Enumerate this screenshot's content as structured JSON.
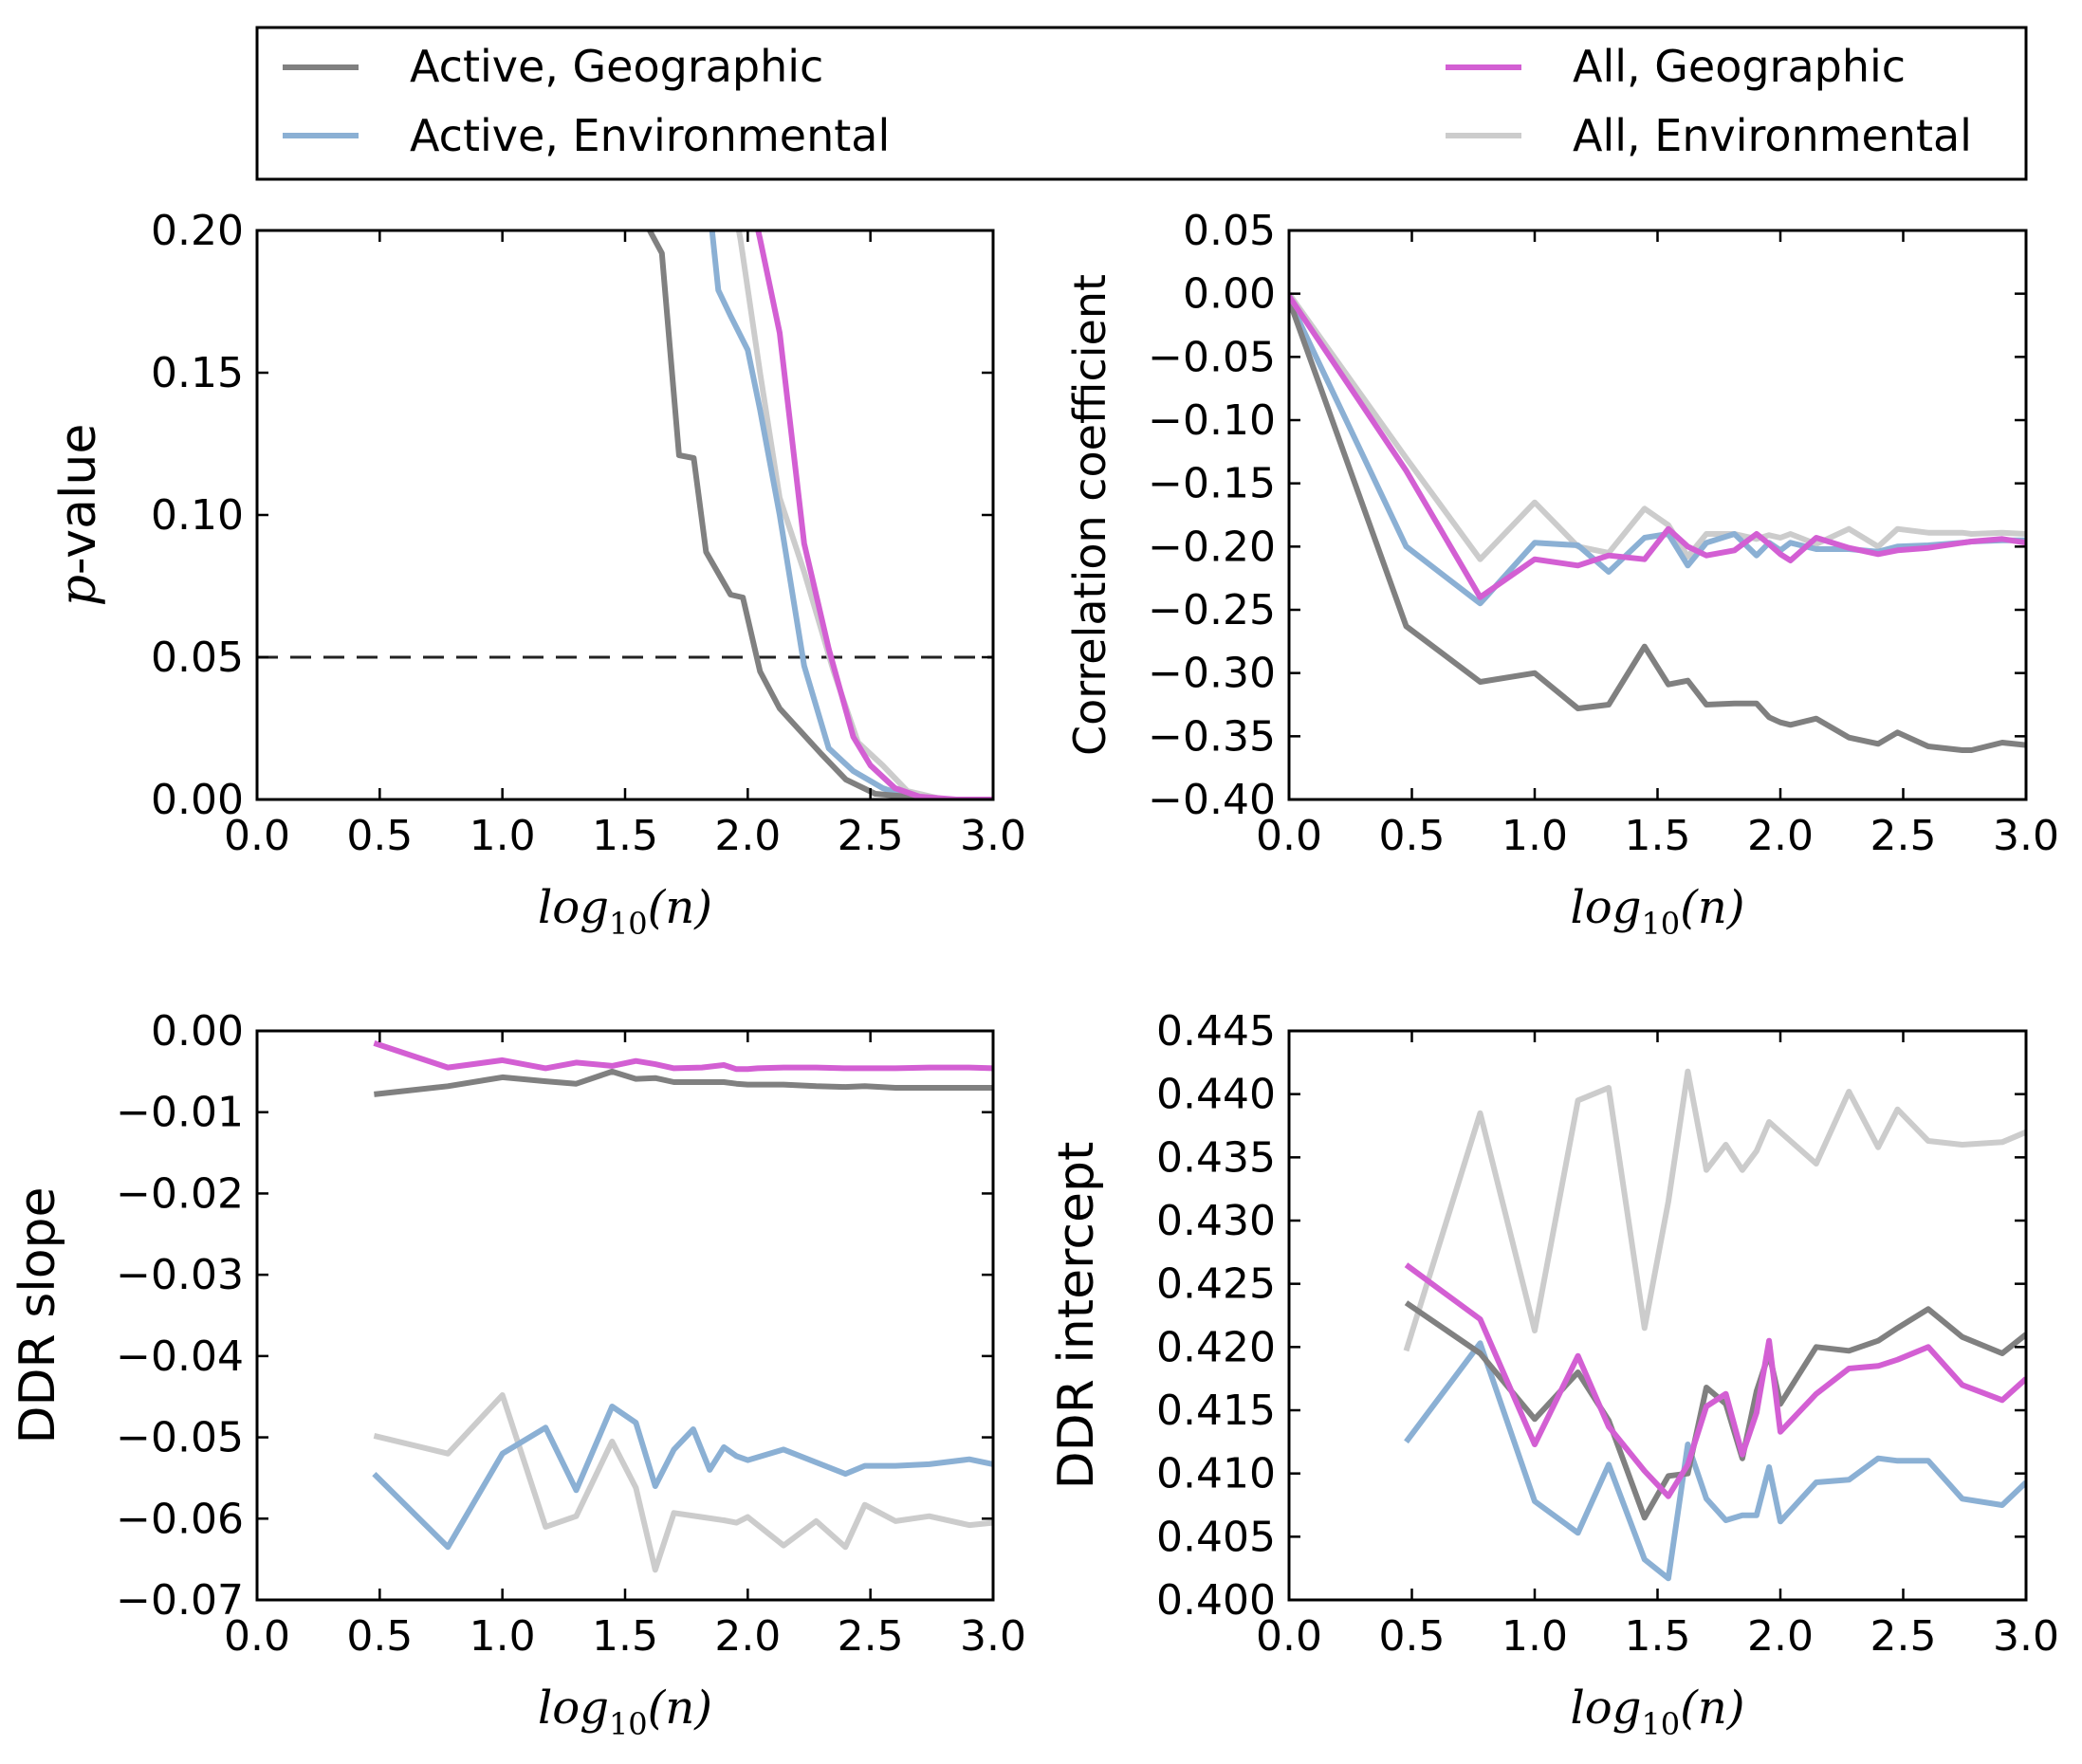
{
  "legend": [
    {
      "name": "Active, Geographic",
      "color": "#808080"
    },
    {
      "name": "Active, Environmental",
      "color": "#8bb0d4"
    },
    {
      "name": "All, Geographic",
      "color": "#d35fd3"
    },
    {
      "name": "All, Environmental",
      "color": "#cccccc"
    }
  ],
  "chart_data": [
    {
      "type": "line",
      "xlabel_base": "log",
      "xlabel_sub": "10",
      "xlabel_arg": "(n)",
      "ylabel_italic": "p",
      "ylabel_rest": "-value",
      "xlim": [
        0,
        3
      ],
      "ylim": [
        0,
        0.2
      ],
      "xticks": [
        "0.0",
        "0.5",
        "1.0",
        "1.5",
        "2.0",
        "2.5",
        "3.0"
      ],
      "yticks": [
        "0.00",
        "0.05",
        "0.10",
        "0.15",
        "0.20"
      ],
      "reference_line": {
        "y": 0.05,
        "style": "dashed"
      },
      "series": [
        {
          "name": "Active, Geographic",
          "x": [
            1.45,
            1.6,
            1.65,
            1.72,
            1.78,
            1.83,
            1.93,
            1.98,
            2.05,
            2.13,
            2.3,
            2.4,
            2.52,
            2.65,
            2.8,
            3.0
          ],
          "y": [
            0.22,
            0.2,
            0.192,
            0.121,
            0.12,
            0.087,
            0.072,
            0.071,
            0.045,
            0.032,
            0.016,
            0.007,
            0.002,
            0.001,
            0.0,
            0.0
          ]
        },
        {
          "name": "Active, Environmental",
          "x": [
            1.83,
            1.88,
            1.93,
            2.0,
            2.05,
            2.13,
            2.23,
            2.33,
            2.43,
            2.55,
            2.65,
            2.8,
            3.0
          ],
          "y": [
            0.22,
            0.179,
            0.17,
            0.158,
            0.137,
            0.1,
            0.047,
            0.018,
            0.01,
            0.004,
            0.001,
            0.0,
            0.0
          ]
        },
        {
          "name": "All, Geographic",
          "x": [
            1.99,
            2.05,
            2.13,
            2.23,
            2.33,
            2.43,
            2.5,
            2.6,
            2.7,
            2.85,
            3.0
          ],
          "y": [
            0.22,
            0.197,
            0.164,
            0.09,
            0.053,
            0.022,
            0.012,
            0.004,
            0.001,
            0.0,
            0.0
          ]
        },
        {
          "name": "All, Environmental",
          "x": [
            1.92,
            1.97,
            2.05,
            2.13,
            2.23,
            2.35,
            2.45,
            2.55,
            2.65,
            2.8,
            3.0
          ],
          "y": [
            0.22,
            0.197,
            0.15,
            0.106,
            0.08,
            0.045,
            0.02,
            0.012,
            0.003,
            0.0,
            0.0
          ]
        }
      ]
    },
    {
      "type": "line",
      "xlabel_base": "log",
      "xlabel_sub": "10",
      "xlabel_arg": "(n)",
      "ylabel": "Correlation coefficient",
      "xlim": [
        0,
        3
      ],
      "ylim": [
        -0.4,
        0.05
      ],
      "xticks": [
        "0.0",
        "0.5",
        "1.0",
        "1.5",
        "2.0",
        "2.5",
        "3.0"
      ],
      "yticks": [
        "0.05",
        "0.00",
        "−0.05",
        "−0.10",
        "−0.15",
        "−0.20",
        "−0.25",
        "−0.30",
        "−0.35",
        "−0.40"
      ],
      "series": [
        {
          "name": "Active, Geographic",
          "x": [
            0,
            0.477,
            0.778,
            1.0,
            1.176,
            1.301,
            1.447,
            1.544,
            1.623,
            1.699,
            1.813,
            1.903,
            1.954,
            2.0,
            2.041,
            2.146,
            2.279,
            2.398,
            2.477,
            2.602,
            2.74,
            2.778,
            2.903,
            3.0
          ],
          "y": [
            -0.005,
            -0.263,
            -0.307,
            -0.3,
            -0.328,
            -0.325,
            -0.279,
            -0.309,
            -0.306,
            -0.325,
            -0.324,
            -0.324,
            -0.335,
            -0.339,
            -0.341,
            -0.336,
            -0.351,
            -0.356,
            -0.347,
            -0.358,
            -0.361,
            -0.361,
            -0.355,
            -0.357
          ]
        },
        {
          "name": "Active, Environmental",
          "x": [
            0,
            0.477,
            0.778,
            1.0,
            1.176,
            1.301,
            1.447,
            1.544,
            1.623,
            1.699,
            1.813,
            1.903,
            1.954,
            2.0,
            2.041,
            2.146,
            2.279,
            2.398,
            2.477,
            2.602,
            2.74,
            2.778,
            2.903,
            3.0
          ],
          "y": [
            -0.005,
            -0.2,
            -0.245,
            -0.197,
            -0.199,
            -0.22,
            -0.193,
            -0.19,
            -0.215,
            -0.197,
            -0.19,
            -0.207,
            -0.197,
            -0.203,
            -0.197,
            -0.202,
            -0.202,
            -0.204,
            -0.2,
            -0.199,
            -0.197,
            -0.196,
            -0.195,
            -0.195
          ]
        },
        {
          "name": "All, Geographic",
          "x": [
            0,
            0.477,
            0.778,
            1.0,
            1.176,
            1.301,
            1.447,
            1.544,
            1.623,
            1.699,
            1.813,
            1.903,
            1.954,
            2.0,
            2.041,
            2.146,
            2.279,
            2.398,
            2.477,
            2.602,
            2.74,
            2.778,
            2.903,
            3.0
          ],
          "y": [
            -0.002,
            -0.14,
            -0.24,
            -0.21,
            -0.215,
            -0.207,
            -0.21,
            -0.186,
            -0.2,
            -0.207,
            -0.203,
            -0.19,
            -0.198,
            -0.206,
            -0.211,
            -0.193,
            -0.201,
            -0.206,
            -0.203,
            -0.201,
            -0.197,
            -0.196,
            -0.194,
            -0.197
          ]
        },
        {
          "name": "All, Environmental",
          "x": [
            0,
            0.477,
            0.778,
            1.0,
            1.176,
            1.301,
            1.447,
            1.544,
            1.623,
            1.699,
            1.813,
            1.903,
            1.954,
            2.0,
            2.041,
            2.146,
            2.279,
            2.398,
            2.477,
            2.602,
            2.74,
            2.778,
            2.903,
            3.0
          ],
          "y": [
            0.0,
            -0.13,
            -0.21,
            -0.165,
            -0.2,
            -0.205,
            -0.17,
            -0.183,
            -0.208,
            -0.19,
            -0.19,
            -0.194,
            -0.191,
            -0.193,
            -0.19,
            -0.198,
            -0.186,
            -0.2,
            -0.186,
            -0.189,
            -0.189,
            -0.19,
            -0.189,
            -0.19
          ]
        }
      ]
    },
    {
      "type": "line",
      "xlabel_base": "log",
      "xlabel_sub": "10",
      "xlabel_arg": "(n)",
      "ylabel": "DDR slope",
      "xlim": [
        0,
        3
      ],
      "ylim": [
        -0.07,
        0.0
      ],
      "xticks": [
        "0.0",
        "0.5",
        "1.0",
        "1.5",
        "2.0",
        "2.5",
        "3.0"
      ],
      "yticks": [
        "0.00",
        "−0.01",
        "−0.02",
        "−0.03",
        "−0.04",
        "−0.05",
        "−0.06",
        "−0.07"
      ],
      "series": [
        {
          "name": "Active, Geographic",
          "x": [
            0.477,
            0.778,
            1.0,
            1.176,
            1.301,
            1.447,
            1.544,
            1.623,
            1.699,
            1.813,
            1.903,
            1.954,
            2.0,
            2.041,
            2.146,
            2.279,
            2.398,
            2.477,
            2.602,
            2.74,
            2.778,
            2.903,
            3.0
          ],
          "y": [
            -0.0078,
            -0.0068,
            -0.0057,
            -0.0062,
            -0.0065,
            -0.005,
            -0.0059,
            -0.0058,
            -0.0063,
            -0.0063,
            -0.0063,
            -0.0065,
            -0.0066,
            -0.0066,
            -0.0066,
            -0.0068,
            -0.0069,
            -0.0068,
            -0.007,
            -0.007,
            -0.007,
            -0.007,
            -0.007
          ]
        },
        {
          "name": "Active, Environmental",
          "x": [
            0.477,
            0.778,
            1.0,
            1.176,
            1.301,
            1.447,
            1.544,
            1.623,
            1.699,
            1.778,
            1.845,
            1.903,
            1.954,
            2.0,
            2.146,
            2.398,
            2.477,
            2.602,
            2.74,
            2.903,
            3.0
          ],
          "y": [
            -0.0545,
            -0.0635,
            -0.052,
            -0.0488,
            -0.0565,
            -0.0462,
            -0.0482,
            -0.056,
            -0.0515,
            -0.049,
            -0.054,
            -0.0512,
            -0.0523,
            -0.0528,
            -0.0515,
            -0.0545,
            -0.0535,
            -0.0535,
            -0.0533,
            -0.0527,
            -0.0533
          ]
        },
        {
          "name": "All, Geographic",
          "x": [
            0.477,
            0.778,
            1.0,
            1.176,
            1.301,
            1.447,
            1.544,
            1.623,
            1.699,
            1.813,
            1.903,
            1.954,
            2.0,
            2.041,
            2.146,
            2.279,
            2.398,
            2.477,
            2.602,
            2.74,
            2.778,
            2.903,
            3.0
          ],
          "y": [
            -0.0015,
            -0.0045,
            -0.0036,
            -0.0046,
            -0.0039,
            -0.0043,
            -0.0037,
            -0.0041,
            -0.0046,
            -0.0045,
            -0.0042,
            -0.0047,
            -0.0047,
            -0.0046,
            -0.0045,
            -0.0045,
            -0.0046,
            -0.0046,
            -0.0046,
            -0.0045,
            -0.0045,
            -0.0045,
            -0.0046
          ]
        },
        {
          "name": "All, Environmental",
          "x": [
            0.477,
            0.778,
            1.0,
            1.176,
            1.301,
            1.447,
            1.544,
            1.623,
            1.699,
            1.813,
            1.903,
            1.954,
            2.0,
            2.146,
            2.279,
            2.398,
            2.477,
            2.602,
            2.74,
            2.903,
            3.0
          ],
          "y": [
            -0.0498,
            -0.052,
            -0.0448,
            -0.061,
            -0.0597,
            -0.0505,
            -0.0562,
            -0.0663,
            -0.0593,
            -0.0598,
            -0.0602,
            -0.0605,
            -0.0598,
            -0.0633,
            -0.0603,
            -0.0635,
            -0.0583,
            -0.0603,
            -0.0597,
            -0.0608,
            -0.0605
          ]
        }
      ]
    },
    {
      "type": "line",
      "xlabel_base": "log",
      "xlabel_sub": "10",
      "xlabel_arg": "(n)",
      "ylabel": "DDR intercept",
      "xlim": [
        0,
        3
      ],
      "ylim": [
        0.4,
        0.445
      ],
      "xticks": [
        "0.0",
        "0.5",
        "1.0",
        "1.5",
        "2.0",
        "2.5",
        "3.0"
      ],
      "yticks": [
        "0.445",
        "0.440",
        "0.435",
        "0.430",
        "0.425",
        "0.420",
        "0.415",
        "0.410",
        "0.405",
        "0.400"
      ],
      "series": [
        {
          "name": "Active, Geographic",
          "x": [
            0.477,
            0.778,
            1.0,
            1.176,
            1.301,
            1.447,
            1.544,
            1.623,
            1.699,
            1.778,
            1.845,
            1.903,
            1.954,
            2.0,
            2.146,
            2.279,
            2.398,
            2.477,
            2.602,
            2.74,
            2.903,
            3.0
          ],
          "y": [
            0.4235,
            0.4195,
            0.4143,
            0.418,
            0.4142,
            0.4065,
            0.4098,
            0.41,
            0.4168,
            0.4155,
            0.4112,
            0.4165,
            0.4195,
            0.4155,
            0.42,
            0.4197,
            0.4205,
            0.4215,
            0.423,
            0.4208,
            0.4195,
            0.421
          ]
        },
        {
          "name": "Active, Environmental",
          "x": [
            0.477,
            0.778,
            1.0,
            1.176,
            1.301,
            1.447,
            1.544,
            1.623,
            1.699,
            1.778,
            1.845,
            1.903,
            1.954,
            2.0,
            2.146,
            2.279,
            2.398,
            2.477,
            2.602,
            2.74,
            2.903,
            3.0
          ],
          "y": [
            0.4125,
            0.4203,
            0.4078,
            0.4053,
            0.4107,
            0.4032,
            0.4017,
            0.4123,
            0.408,
            0.4063,
            0.4067,
            0.4067,
            0.4105,
            0.4062,
            0.4093,
            0.4095,
            0.4112,
            0.411,
            0.411,
            0.408,
            0.4075,
            0.4093
          ]
        },
        {
          "name": "All, Geographic",
          "x": [
            0.477,
            0.778,
            1.0,
            1.176,
            1.301,
            1.447,
            1.544,
            1.623,
            1.699,
            1.778,
            1.845,
            1.903,
            1.954,
            2.0,
            2.146,
            2.279,
            2.398,
            2.477,
            2.602,
            2.74,
            2.903,
            3.0
          ],
          "y": [
            0.4265,
            0.4222,
            0.4123,
            0.4193,
            0.4137,
            0.4102,
            0.4082,
            0.4107,
            0.4153,
            0.4163,
            0.4115,
            0.4148,
            0.4205,
            0.4133,
            0.4163,
            0.4183,
            0.4185,
            0.419,
            0.42,
            0.417,
            0.4158,
            0.4175
          ]
        },
        {
          "name": "All, Environmental",
          "x": [
            0.477,
            0.778,
            1.0,
            1.176,
            1.301,
            1.447,
            1.544,
            1.623,
            1.699,
            1.778,
            1.845,
            1.903,
            1.954,
            2.0,
            2.146,
            2.279,
            2.398,
            2.477,
            2.602,
            2.74,
            2.903,
            3.0
          ],
          "y": [
            0.4197,
            0.4385,
            0.4213,
            0.4395,
            0.4405,
            0.4215,
            0.4315,
            0.4418,
            0.434,
            0.436,
            0.434,
            0.4355,
            0.4378,
            0.437,
            0.4345,
            0.4402,
            0.4358,
            0.4388,
            0.4363,
            0.436,
            0.4362,
            0.437
          ]
        }
      ]
    }
  ]
}
